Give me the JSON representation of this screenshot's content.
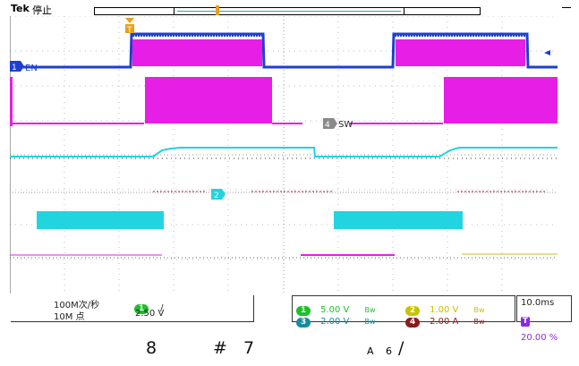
{
  "header": {
    "brand": "Tek",
    "status": "停止"
  },
  "markers": {
    "trigger_position": "T",
    "ch1_label": "1",
    "ch1_name": "EN",
    "ch4_label": "4",
    "ch4_name": "SW",
    "ch2_label": "2"
  },
  "horizontal": {
    "sample_rate": "100M次/秒",
    "record_length": "10M 点",
    "trigger_source": "1",
    "trigger_slope": "/",
    "trigger_level": "2.50 V"
  },
  "channels": {
    "ch1": {
      "label": "1",
      "scale": "5.00 V",
      "coupling": "Bw"
    },
    "ch2": {
      "label": "2",
      "scale": "1.00 V",
      "coupling": "Bw"
    },
    "ch3": {
      "label": "3",
      "scale": "2.00 V",
      "coupling": "Bw"
    },
    "ch4": {
      "label": "4",
      "scale": "2.00 A",
      "coupling": "Bw"
    }
  },
  "timebase": {
    "time_per_div": "10.0ms",
    "trigger_icon": "T",
    "trigger_position": "20.00 %"
  },
  "footer": {
    "glyph1": "8",
    "glyph2": "#",
    "glyph3": "7",
    "glyph4": "A",
    "glyph5": "6",
    "glyph6": "/"
  },
  "colors": {
    "ch1": "#1e3fd0",
    "ch2": "#c8c200",
    "ch3": "#21d4e0",
    "ch4": "#e61ee6",
    "trigger": "#e8a020"
  }
}
